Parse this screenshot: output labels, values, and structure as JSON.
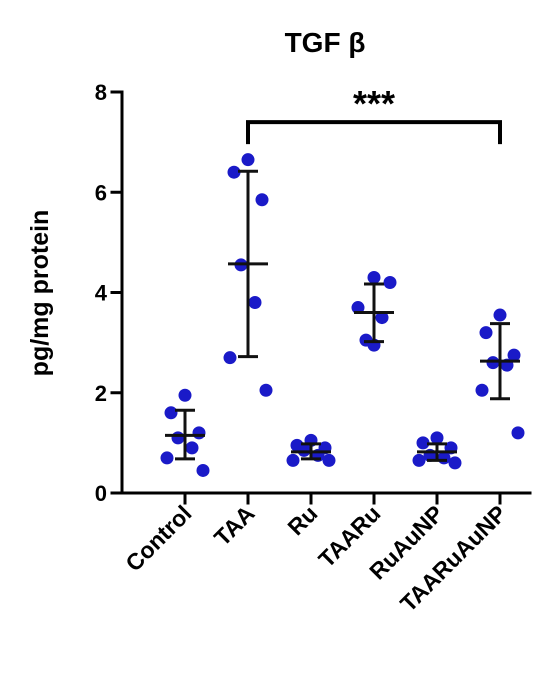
{
  "chart_data": {
    "type": "scatter",
    "title": "TGF β",
    "ylabel": "pg/mg protein",
    "xlabel": "",
    "ylim": [
      0,
      8
    ],
    "yticks": [
      0,
      2,
      4,
      6,
      8
    ],
    "grid": false,
    "categories": [
      "Control",
      "TAA",
      "Ru",
      "TAARu",
      "RuAuNP",
      "TAARuAuNP"
    ],
    "point_color": "#1a1ac8",
    "groups": [
      {
        "category": "Control",
        "points": [
          1.95,
          1.6,
          1.2,
          1.1,
          0.9,
          0.7,
          0.45
        ],
        "mean": 1.15,
        "sd_low": 0.68,
        "sd_high": 1.65
      },
      {
        "category": "TAA",
        "points": [
          6.65,
          6.4,
          5.85,
          4.55,
          3.8,
          2.7,
          2.05
        ],
        "mean": 4.57,
        "sd_low": 2.72,
        "sd_high": 6.42
      },
      {
        "category": "Ru",
        "points": [
          1.05,
          0.95,
          0.9,
          0.85,
          0.75,
          0.65,
          0.65
        ],
        "mean": 0.82,
        "sd_low": 0.68,
        "sd_high": 0.98
      },
      {
        "category": "TAARu",
        "points": [
          4.3,
          4.2,
          3.7,
          3.5,
          3.05,
          2.95
        ],
        "mean": 3.6,
        "sd_low": 3.02,
        "sd_high": 4.17
      },
      {
        "category": "RuAuNP",
        "points": [
          1.1,
          1.0,
          0.9,
          0.75,
          0.7,
          0.65,
          0.6
        ],
        "mean": 0.82,
        "sd_low": 0.65,
        "sd_high": 0.98
      },
      {
        "category": "TAARuAuNP",
        "points": [
          3.55,
          3.2,
          2.75,
          2.6,
          2.55,
          2.05,
          1.2
        ],
        "mean": 2.63,
        "sd_low": 1.88,
        "sd_high": 3.38
      }
    ],
    "annotations": [
      {
        "text": "***",
        "from": "TAA",
        "to": "TAARuAuNP",
        "y": 7.4
      }
    ]
  }
}
